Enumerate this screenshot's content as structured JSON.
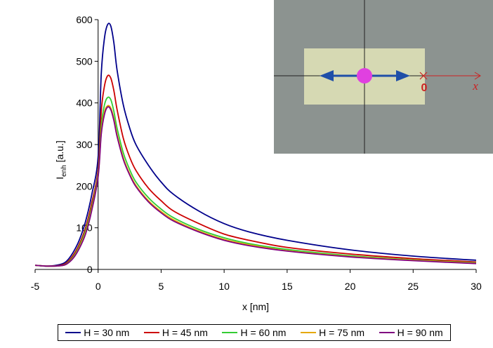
{
  "chart_data": {
    "type": "line",
    "xlabel": "x [nm]",
    "ylabel_main": "I",
    "ylabel_sub": "enh",
    "ylabel_unit": " [a.u.]",
    "xlim": [
      -5,
      30
    ],
    "ylim": [
      0,
      600
    ],
    "x_ticks": [
      "-5",
      "0",
      "5",
      "10",
      "15",
      "20",
      "25",
      "30"
    ],
    "y_ticks": [
      "0",
      "100",
      "200",
      "300",
      "400",
      "500",
      "600"
    ],
    "x": [
      -5,
      -4,
      -3,
      -2.5,
      -2,
      -1.5,
      -1,
      -0.5,
      0,
      0.25,
      0.5,
      0.75,
      1,
      1.25,
      1.5,
      2,
      2.5,
      3,
      4,
      5,
      6,
      8,
      10,
      12,
      15,
      20,
      25,
      30
    ],
    "series": [
      {
        "name": "H = 30 nm",
        "color": "#00008B",
        "values": [
          10,
          8,
          12,
          20,
          40,
          70,
          115,
          180,
          270,
          470,
          555,
          588,
          585,
          545,
          480,
          395,
          340,
          300,
          250,
          210,
          180,
          140,
          110,
          90,
          70,
          47,
          32,
          22
        ]
      },
      {
        "name": "H = 45 nm",
        "color": "#CC0000",
        "values": [
          10,
          8,
          10,
          16,
          33,
          60,
          100,
          160,
          240,
          380,
          440,
          465,
          460,
          430,
          385,
          315,
          270,
          238,
          195,
          165,
          140,
          110,
          85,
          70,
          53,
          37,
          26,
          18
        ]
      },
      {
        "name": "H = 60 nm",
        "color": "#33CC33",
        "values": [
          10,
          8,
          9,
          14,
          29,
          55,
          93,
          150,
          230,
          345,
          395,
          413,
          408,
          380,
          340,
          280,
          240,
          210,
          172,
          145,
          124,
          96,
          76,
          62,
          48,
          33,
          23,
          16
        ]
      },
      {
        "name": "H = 75 nm",
        "color": "#E6A800",
        "values": [
          10,
          8,
          9,
          13,
          27,
          52,
          88,
          145,
          225,
          330,
          378,
          393,
          388,
          363,
          325,
          268,
          230,
          202,
          165,
          139,
          119,
          92,
          72,
          59,
          45,
          31,
          22,
          15
        ]
      },
      {
        "name": "H = 90 nm",
        "color": "#800080",
        "values": [
          10,
          8,
          9,
          13,
          26,
          50,
          85,
          142,
          222,
          325,
          372,
          390,
          384,
          358,
          320,
          264,
          227,
          199,
          162,
          136,
          116,
          90,
          70,
          57,
          44,
          30,
          21,
          14
        ]
      }
    ],
    "inset": {
      "origin_label": "0",
      "axis_label": "x",
      "background": "#8C9390",
      "rect_color": "#D6D9B3",
      "arrow_color": "#1F4FA8",
      "dot_color": "#E040E0",
      "axis_color": "#CC2222"
    }
  }
}
